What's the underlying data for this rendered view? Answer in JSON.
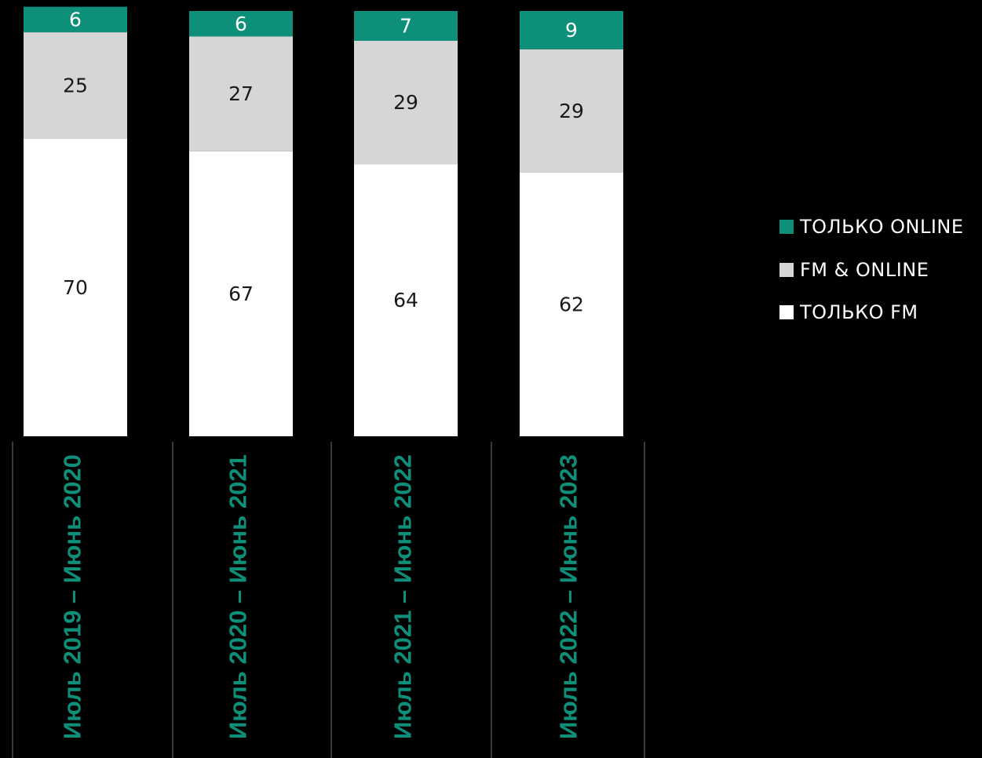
{
  "chart_data": {
    "type": "bar",
    "stacked": true,
    "categories": [
      "Июль 2019 – Июнь 2020",
      "Июль 2020 – Июнь 2021",
      "Июль 2021 – Июнь 2022",
      "Июль 2022 – Июнь 2023"
    ],
    "series": [
      {
        "name": "ТОЛЬКО FM",
        "values": [
          70,
          67,
          64,
          62
        ],
        "color": "#ffffff"
      },
      {
        "name": "FM & ONLINE",
        "values": [
          25,
          27,
          29,
          29
        ],
        "color": "#d6d6d6"
      },
      {
        "name": "ТОЛЬКО ONLINE",
        "values": [
          6,
          6,
          7,
          9
        ],
        "color": "#0e8f7a"
      }
    ],
    "legend": {
      "position": "right",
      "order": [
        "ТОЛЬКО ONLINE",
        "FM & ONLINE",
        "ТОЛЬКО FM"
      ]
    },
    "category_label_color": "#0e8f7a",
    "background": "#000000",
    "gridlines": false
  }
}
